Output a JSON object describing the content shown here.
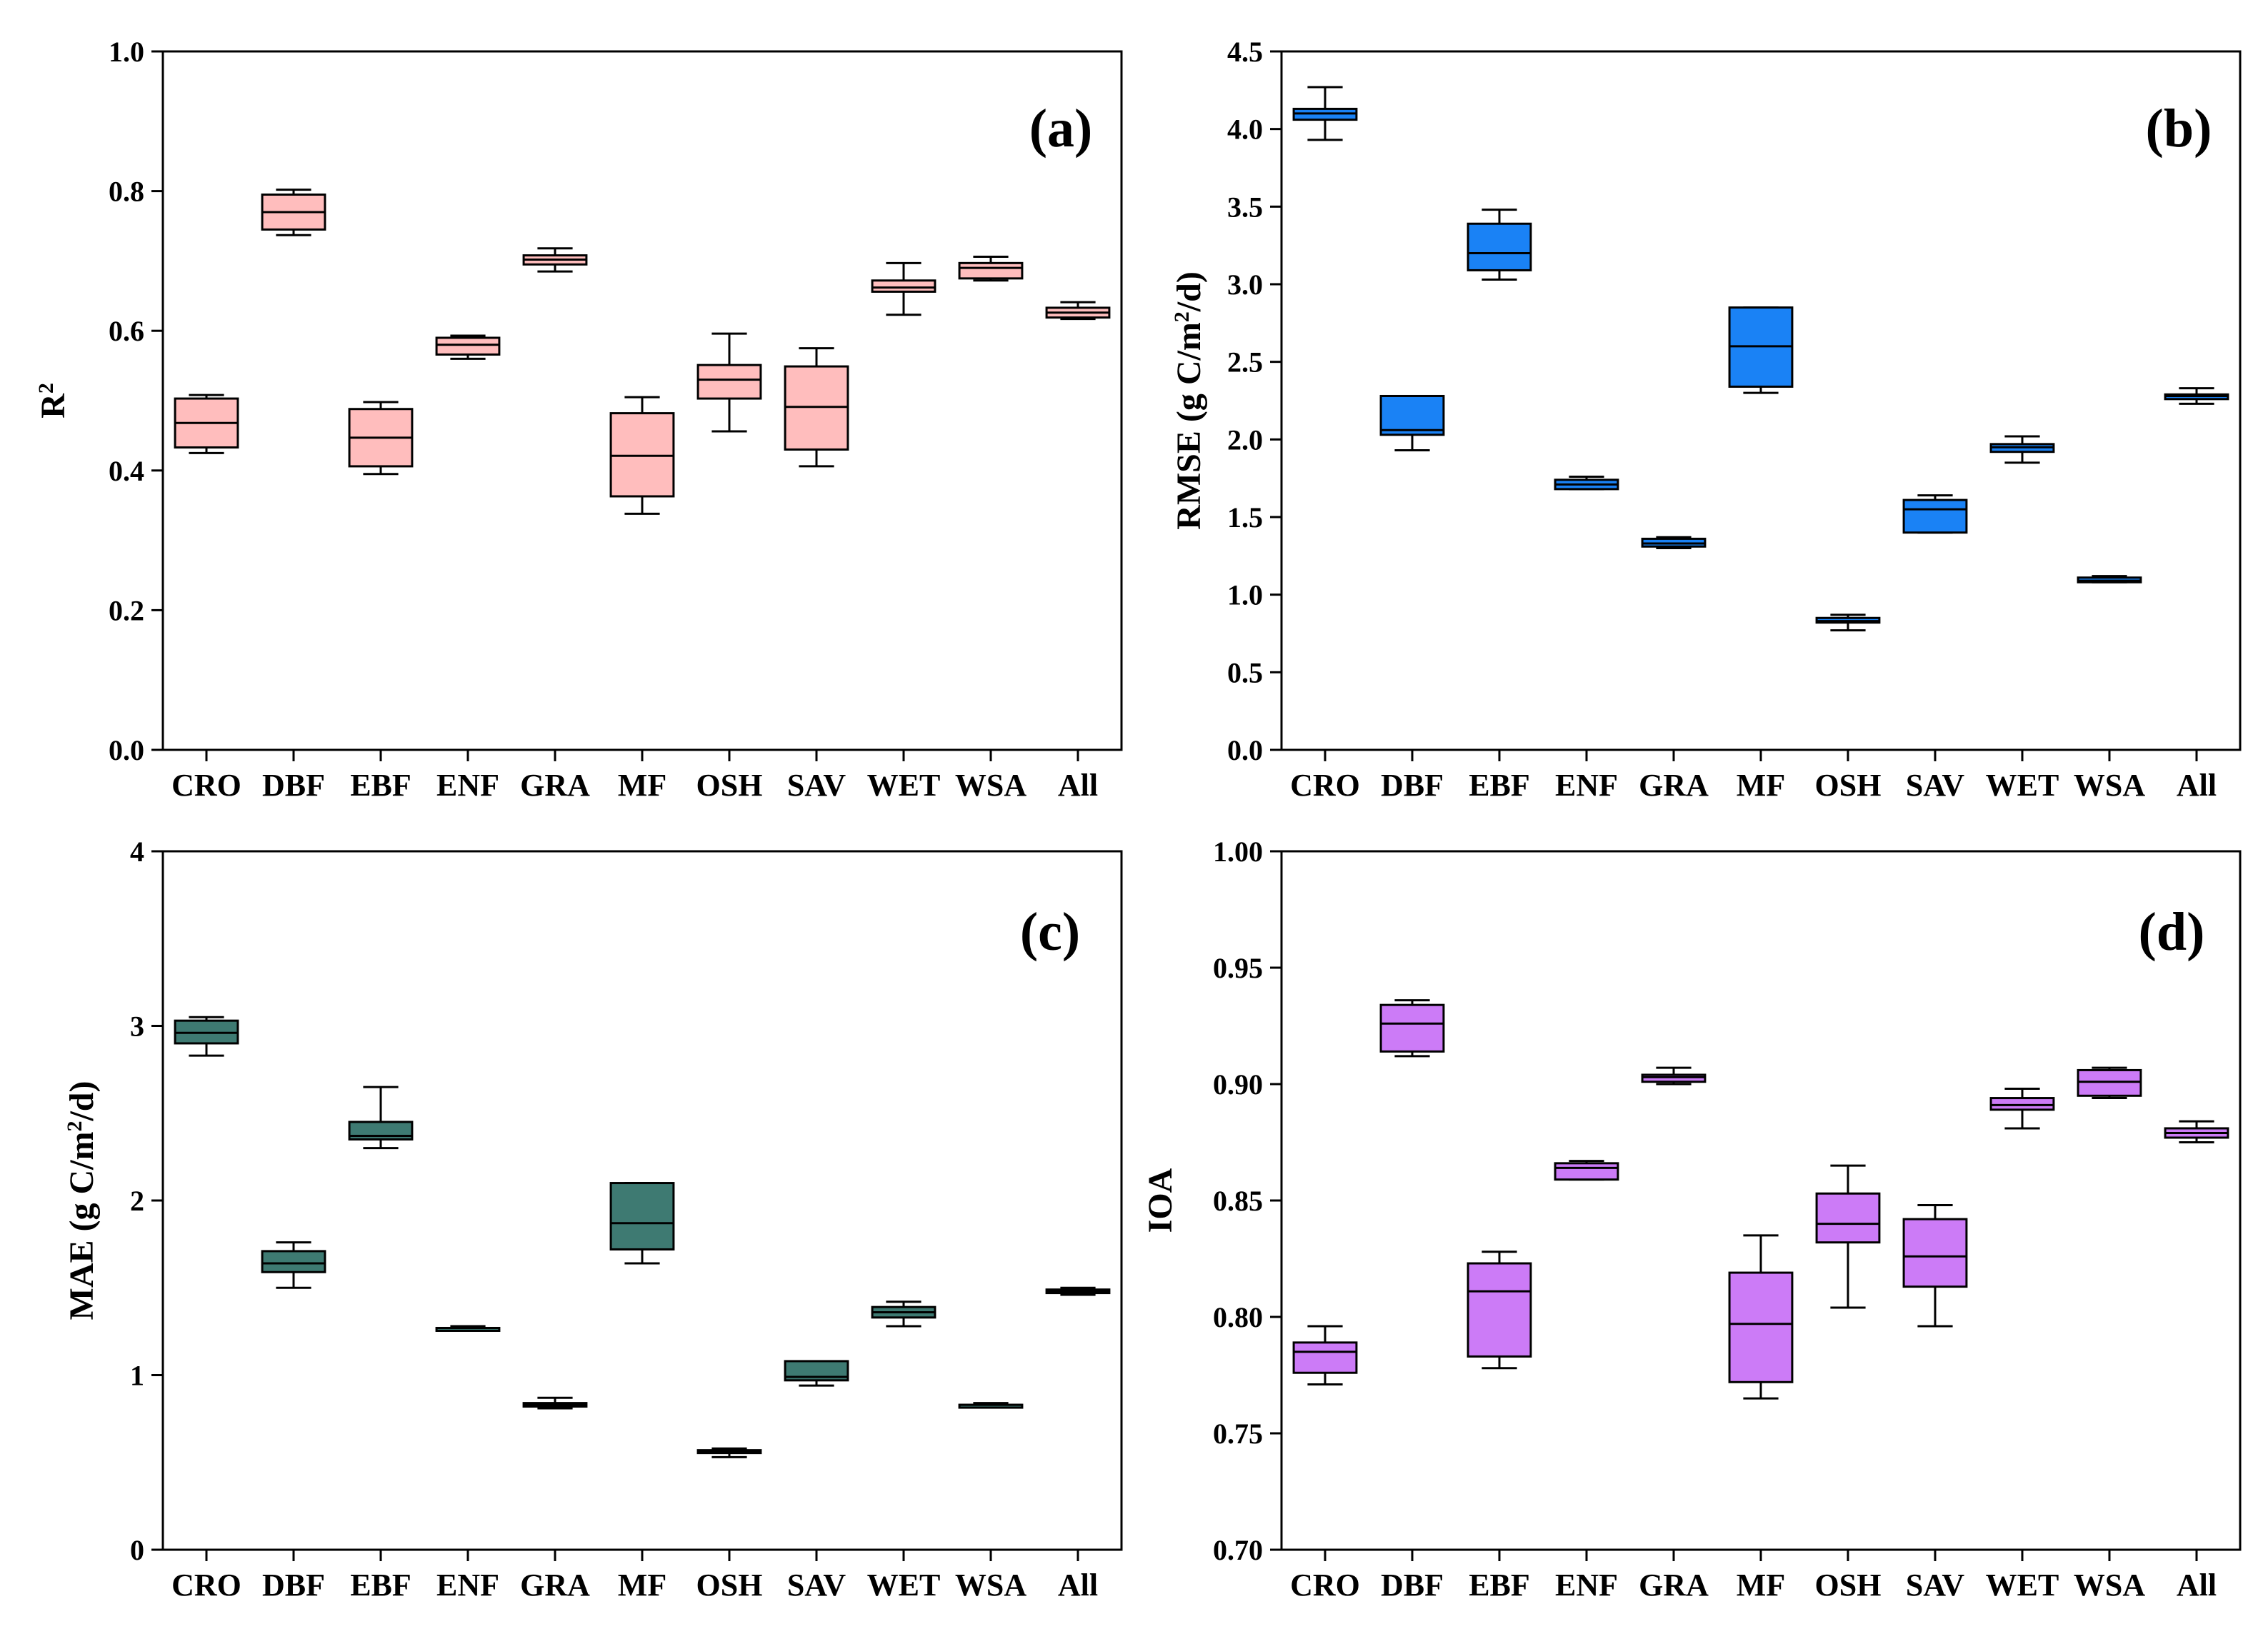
{
  "chart_data": [
    {
      "type": "box",
      "panel": "a",
      "title": "(a)",
      "ylabel": "R",
      "ylabel_sup": "2",
      "ylim": [
        0.0,
        1.0
      ],
      "yticks": [
        0.0,
        0.2,
        0.4,
        0.6,
        0.8,
        1.0
      ],
      "ytick_labels": [
        "0.0",
        "0.2",
        "0.4",
        "0.6",
        "0.8",
        "1.0"
      ],
      "color": "#ffbdbd",
      "categories": [
        "CRO",
        "DBF",
        "EBF",
        "ENF",
        "GRA",
        "MF",
        "OSH",
        "SAV",
        "WET",
        "WSA",
        "All"
      ],
      "boxes": [
        {
          "min": 0.425,
          "q1": 0.433,
          "median": 0.468,
          "q3": 0.503,
          "max": 0.508
        },
        {
          "min": 0.737,
          "q1": 0.745,
          "median": 0.77,
          "q3": 0.795,
          "max": 0.802
        },
        {
          "min": 0.395,
          "q1": 0.406,
          "median": 0.447,
          "q3": 0.488,
          "max": 0.498
        },
        {
          "min": 0.56,
          "q1": 0.566,
          "median": 0.58,
          "q3": 0.59,
          "max": 0.593
        },
        {
          "min": 0.685,
          "q1": 0.695,
          "median": 0.702,
          "q3": 0.708,
          "max": 0.718
        },
        {
          "min": 0.338,
          "q1": 0.363,
          "median": 0.421,
          "q3": 0.482,
          "max": 0.505
        },
        {
          "min": 0.456,
          "q1": 0.503,
          "median": 0.53,
          "q3": 0.551,
          "max": 0.596
        },
        {
          "min": 0.406,
          "q1": 0.43,
          "median": 0.491,
          "q3": 0.549,
          "max": 0.575
        },
        {
          "min": 0.623,
          "q1": 0.656,
          "median": 0.662,
          "q3": 0.672,
          "max": 0.697
        },
        {
          "min": 0.672,
          "q1": 0.675,
          "median": 0.69,
          "q3": 0.697,
          "max": 0.706
        },
        {
          "min": 0.617,
          "q1": 0.619,
          "median": 0.626,
          "q3": 0.633,
          "max": 0.641
        }
      ]
    },
    {
      "type": "box",
      "panel": "b",
      "title": "(b)",
      "ylabel": "RMSE (g C/m",
      "ylabel_sup": "2",
      "ylabel_end": "/d)",
      "ylim": [
        0.0,
        4.5
      ],
      "yticks": [
        0.0,
        0.5,
        1.0,
        1.5,
        2.0,
        2.5,
        3.0,
        3.5,
        4.0,
        4.5
      ],
      "ytick_labels": [
        "0.0",
        "0.5",
        "1.0",
        "1.5",
        "2.0",
        "2.5",
        "3.0",
        "3.5",
        "4.0",
        "4.5"
      ],
      "color": "#1a82f5",
      "categories": [
        "CRO",
        "DBF",
        "EBF",
        "ENF",
        "GRA",
        "MF",
        "OSH",
        "SAV",
        "WET",
        "WSA",
        "All"
      ],
      "boxes": [
        {
          "min": 3.93,
          "q1": 4.06,
          "median": 4.1,
          "q3": 4.13,
          "max": 4.27
        },
        {
          "min": 1.93,
          "q1": 2.03,
          "median": 2.06,
          "q3": 2.28,
          "max": 2.28
        },
        {
          "min": 3.03,
          "q1": 3.09,
          "median": 3.2,
          "q3": 3.39,
          "max": 3.48
        },
        {
          "min": 1.68,
          "q1": 1.68,
          "median": 1.71,
          "q3": 1.74,
          "max": 1.76
        },
        {
          "min": 1.3,
          "q1": 1.31,
          "median": 1.33,
          "q3": 1.36,
          "max": 1.37
        },
        {
          "min": 2.3,
          "q1": 2.34,
          "median": 2.6,
          "q3": 2.85,
          "max": 2.85
        },
        {
          "min": 0.77,
          "q1": 0.82,
          "median": 0.83,
          "q3": 0.85,
          "max": 0.87
        },
        {
          "min": 1.4,
          "q1": 1.4,
          "median": 1.55,
          "q3": 1.61,
          "max": 1.64
        },
        {
          "min": 1.85,
          "q1": 1.92,
          "median": 1.95,
          "q3": 1.97,
          "max": 2.02
        },
        {
          "min": 1.08,
          "q1": 1.08,
          "median": 1.09,
          "q3": 1.11,
          "max": 1.12
        },
        {
          "min": 2.23,
          "q1": 2.26,
          "median": 2.28,
          "q3": 2.29,
          "max": 2.33
        }
      ]
    },
    {
      "type": "box",
      "panel": "c",
      "title": "(c)",
      "ylabel": "MAE (g C/m",
      "ylabel_sup": "2",
      "ylabel_end": "/d)",
      "ylim": [
        0,
        4
      ],
      "yticks": [
        0,
        1,
        2,
        3,
        4
      ],
      "ytick_labels": [
        "0",
        "1",
        "2",
        "3",
        "4"
      ],
      "color": "#3e7a72",
      "categories": [
        "CRO",
        "DBF",
        "EBF",
        "ENF",
        "GRA",
        "MF",
        "OSH",
        "SAV",
        "WET",
        "WSA",
        "All"
      ],
      "boxes": [
        {
          "min": 2.83,
          "q1": 2.9,
          "median": 2.96,
          "q3": 3.03,
          "max": 3.05
        },
        {
          "min": 1.5,
          "q1": 1.59,
          "median": 1.64,
          "q3": 1.71,
          "max": 1.76
        },
        {
          "min": 2.3,
          "q1": 2.35,
          "median": 2.37,
          "q3": 2.45,
          "max": 2.65
        },
        {
          "min": 1.26,
          "q1": 1.26,
          "median": 1.27,
          "q3": 1.27,
          "max": 1.28
        },
        {
          "min": 0.81,
          "q1": 0.82,
          "median": 0.83,
          "q3": 0.84,
          "max": 0.87
        },
        {
          "min": 1.64,
          "q1": 1.72,
          "median": 1.87,
          "q3": 2.1,
          "max": 2.1
        },
        {
          "min": 0.53,
          "q1": 0.56,
          "median": 0.56,
          "q3": 0.57,
          "max": 0.58
        },
        {
          "min": 0.94,
          "q1": 0.97,
          "median": 0.99,
          "q3": 1.08,
          "max": 1.08
        },
        {
          "min": 1.28,
          "q1": 1.33,
          "median": 1.36,
          "q3": 1.39,
          "max": 1.42
        },
        {
          "min": 0.82,
          "q1": 0.82,
          "median": 0.83,
          "q3": 0.83,
          "max": 0.84
        },
        {
          "min": 1.46,
          "q1": 1.47,
          "median": 1.48,
          "q3": 1.49,
          "max": 1.5
        }
      ]
    },
    {
      "type": "box",
      "panel": "d",
      "title": "(d)",
      "ylabel": "IOA",
      "ylim": [
        0.7,
        1.0
      ],
      "yticks": [
        0.7,
        0.75,
        0.8,
        0.85,
        0.9,
        0.95,
        1.0
      ],
      "ytick_labels": [
        "0.70",
        "0.75",
        "0.80",
        "0.85",
        "0.90",
        "0.95",
        "1.00"
      ],
      "color": "#cc7bf7",
      "categories": [
        "CRO",
        "DBF",
        "EBF",
        "ENF",
        "GRA",
        "MF",
        "OSH",
        "SAV",
        "WET",
        "WSA",
        "All"
      ],
      "boxes": [
        {
          "min": 0.771,
          "q1": 0.776,
          "median": 0.785,
          "q3": 0.789,
          "max": 0.796
        },
        {
          "min": 0.912,
          "q1": 0.914,
          "median": 0.926,
          "q3": 0.934,
          "max": 0.936
        },
        {
          "min": 0.778,
          "q1": 0.783,
          "median": 0.811,
          "q3": 0.823,
          "max": 0.828
        },
        {
          "min": 0.859,
          "q1": 0.859,
          "median": 0.864,
          "q3": 0.866,
          "max": 0.867
        },
        {
          "min": 0.9,
          "q1": 0.901,
          "median": 0.903,
          "q3": 0.904,
          "max": 0.907
        },
        {
          "min": 0.765,
          "q1": 0.772,
          "median": 0.797,
          "q3": 0.819,
          "max": 0.835
        },
        {
          "min": 0.804,
          "q1": 0.832,
          "median": 0.84,
          "q3": 0.853,
          "max": 0.865
        },
        {
          "min": 0.796,
          "q1": 0.813,
          "median": 0.826,
          "q3": 0.842,
          "max": 0.848
        },
        {
          "min": 0.881,
          "q1": 0.889,
          "median": 0.891,
          "q3": 0.894,
          "max": 0.898
        },
        {
          "min": 0.894,
          "q1": 0.895,
          "median": 0.901,
          "q3": 0.906,
          "max": 0.907
        },
        {
          "min": 0.875,
          "q1": 0.877,
          "median": 0.879,
          "q3": 0.881,
          "max": 0.884
        }
      ]
    }
  ]
}
